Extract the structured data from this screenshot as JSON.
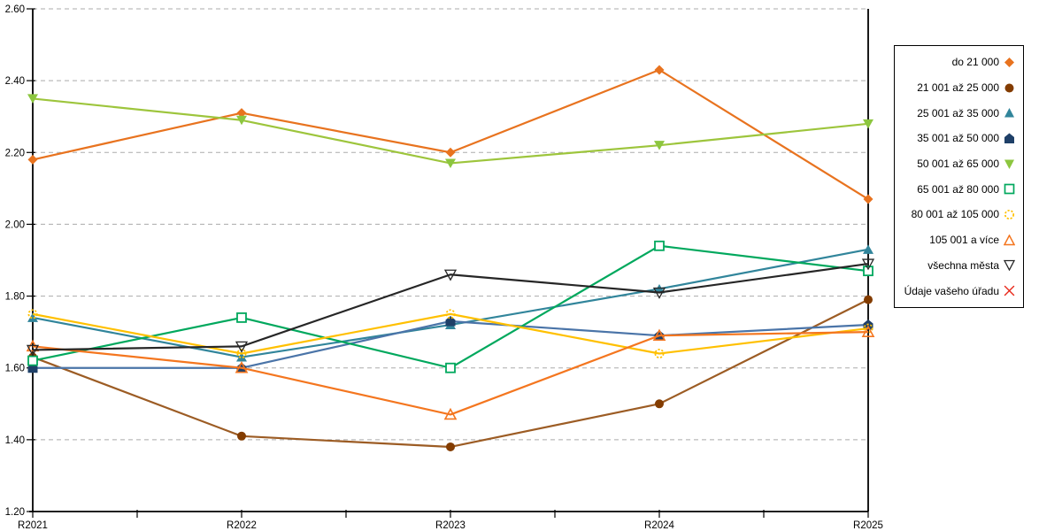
{
  "chart_data": {
    "type": "line",
    "title": "",
    "xlabel": "",
    "ylabel": "",
    "x_categories": [
      "R2021",
      "R2022",
      "R2023",
      "R2024",
      "R2025"
    ],
    "axes": {
      "y_min": 1.2,
      "y_max": 2.6,
      "y_step": 0.2,
      "y_tick_format": "0.00"
    },
    "grid": "horizontal-dashed",
    "legend_position": "right",
    "series": [
      {
        "name": "do 21 000",
        "marker": "diamond-filled",
        "line_color": "#E8731F",
        "marker_color": "#E8731F",
        "values": [
          2.18,
          2.31,
          2.2,
          2.43,
          2.07
        ]
      },
      {
        "name": "21 001 až 25 000",
        "marker": "circle-filled",
        "line_color": "#9C5C24",
        "marker_color": "#833C00",
        "values": [
          1.63,
          1.41,
          1.38,
          1.5,
          1.79
        ]
      },
      {
        "name": "25 001 až 35 000",
        "marker": "triangle-up-filled",
        "line_color": "#31859B",
        "marker_color": "#31859B",
        "values": [
          1.74,
          1.63,
          1.72,
          1.82,
          1.93
        ]
      },
      {
        "name": "35 001 až 50 000",
        "marker": "pentagon-filled",
        "line_color": "#4A74A8",
        "marker_color": "#1F4068",
        "values": [
          1.6,
          1.6,
          1.73,
          1.69,
          1.72
        ]
      },
      {
        "name": "50 001 až 65 000",
        "marker": "triangle-down-filled",
        "line_color": "#9DC53C",
        "marker_color": "#8CC63F",
        "values": [
          2.35,
          2.29,
          2.17,
          2.22,
          2.28
        ]
      },
      {
        "name": "65 001 až 80 000",
        "marker": "square-open",
        "line_color": "#00A85D",
        "marker_color": "#00A85D",
        "values": [
          1.62,
          1.74,
          1.6,
          1.94,
          1.87
        ]
      },
      {
        "name": "80 001 až 105 000",
        "marker": "circle-open-dashed",
        "line_color": "#FFC000",
        "marker_color": "#FFC000",
        "values": [
          1.75,
          1.64,
          1.75,
          1.64,
          1.71
        ]
      },
      {
        "name": "105 001 a více",
        "marker": "triangle-up-open",
        "line_color": "#F4761F",
        "marker_color": "#F4761F",
        "values": [
          1.66,
          1.6,
          1.47,
          1.69,
          1.7
        ]
      },
      {
        "name": "všechna města",
        "marker": "triangle-down-open",
        "line_color": "#262626",
        "marker_color": "#262626",
        "values": [
          1.65,
          1.66,
          1.86,
          1.81,
          1.89
        ]
      },
      {
        "name": "Údaje vašeho úřadu",
        "marker": "x",
        "line_color": "#E8291B",
        "marker_color": "#E8291B",
        "values": []
      }
    ]
  }
}
